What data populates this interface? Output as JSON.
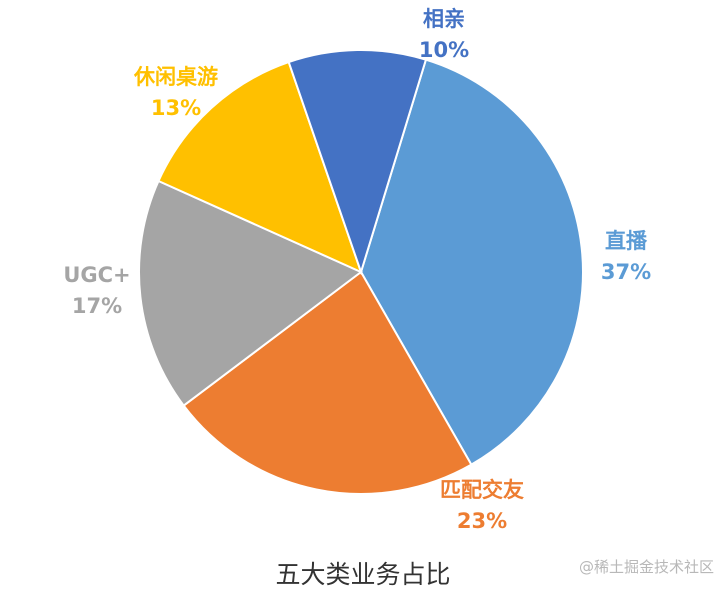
{
  "chart_data": {
    "type": "pie",
    "title": "五大类业务占比",
    "slices": [
      {
        "name": "直播",
        "value": 37,
        "label": "37%",
        "color": "#5b9bd5"
      },
      {
        "name": "匹配交友",
        "value": 23,
        "label": "23%",
        "color": "#ed7d31"
      },
      {
        "name": "UGC+",
        "value": 17,
        "label": "17%",
        "color": "#a5a5a5"
      },
      {
        "name": "休闲桌游",
        "value": 13,
        "label": "13%",
        "color": "#ffc000"
      },
      {
        "name": "相亲",
        "value": 10,
        "label": "10%",
        "color": "#4472c4"
      }
    ],
    "start": "from 相亲 edge near top, clockwise"
  },
  "watermark": "@稀土掘金技术社区"
}
